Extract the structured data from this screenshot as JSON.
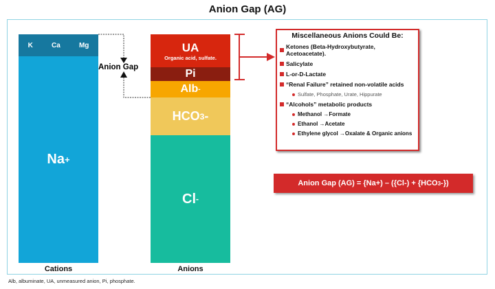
{
  "title": "Anion Gap (AG)",
  "cations": {
    "minor": [
      "K",
      "Ca",
      "Mg"
    ],
    "major": "Na",
    "major_charge": "+",
    "label": "Cations"
  },
  "anions": {
    "ua": "UA",
    "ua_sub": "Organic acid, sulfate.",
    "pi": "Pi",
    "alb": "Alb",
    "alb_charge": "-",
    "hco3": "HCO",
    "hco3_sub": "3",
    "hco3_charge": "-",
    "cl": "Cl",
    "cl_charge": "-",
    "label": "Anions"
  },
  "gap_label": "Anion Gap",
  "misc": {
    "heading": "Miscellaneous Anions Could Be:",
    "items": [
      "Ketones (Beta-Hydroxybutyrate, Acetoacetate).",
      "Salicylate",
      "L-or-D-Lactate",
      "“Renal Failure” retained non-volatile acids",
      "“Alcohols” metabolic products"
    ],
    "renal_sub": "Sulfate, Phosphate, Urate, Hippurate",
    "alcohol_subs": [
      "Methanol →Formate",
      "Ethanol →Acetate",
      "Ethylene glycol →Oxalate & Organic anions"
    ]
  },
  "formula": {
    "pre": "Anion Gap (AG) = {Na+) – ({Cl-) + {HCO",
    "sub": "3",
    "post": "-})"
  },
  "caption": "Alb, albuminate, UA, unmeasured anion, Pi, phosphate.",
  "colors": {
    "cation": "#12a5d8",
    "cation_minor": "#16789f",
    "ua": "#d7260e",
    "pi": "#8a1e10",
    "alb": "#f7a600",
    "hco3": "#f0c85a",
    "cl": "#17bc9e",
    "accent": "#d32a2a"
  }
}
